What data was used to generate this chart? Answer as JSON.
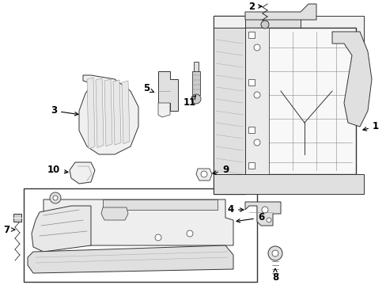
{
  "bg_color": "#ffffff",
  "line_color": "#333333",
  "fill_light": "#f0f0f0",
  "fill_med": "#e0e0e0",
  "fill_dark": "#cccccc",
  "label_fontsize": 8.5,
  "fig_width": 4.89,
  "fig_height": 3.6,
  "dpi": 100
}
